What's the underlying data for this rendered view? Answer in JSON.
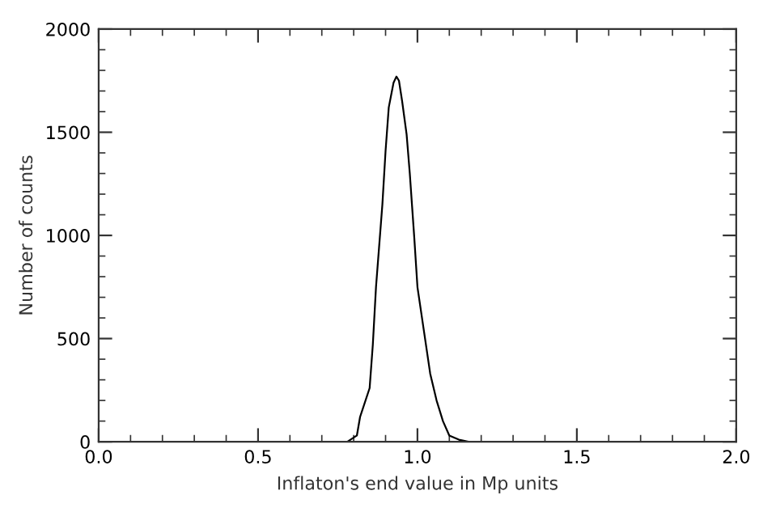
{
  "chart_data": {
    "type": "line",
    "xlabel": "Inflaton's end value in Mp units",
    "ylabel": "Number of counts",
    "xlim": [
      0.0,
      2.0
    ],
    "ylim": [
      0,
      2000
    ],
    "xticks": [
      {
        "value": 0.0,
        "label": "0.0"
      },
      {
        "value": 0.5,
        "label": "0.5"
      },
      {
        "value": 1.0,
        "label": "1.0"
      },
      {
        "value": 1.5,
        "label": "1.5"
      },
      {
        "value": 2.0,
        "label": "2.0"
      }
    ],
    "yticks": [
      0,
      500,
      1000,
      1500,
      2000
    ],
    "grid": false,
    "marker": "none",
    "line_style": "solid",
    "series": [
      {
        "color": "#000000",
        "x": [
          0.78,
          0.81,
          0.82,
          0.85,
          0.86,
          0.87,
          0.89,
          0.9,
          0.91,
          0.925,
          0.934,
          0.942,
          0.952,
          0.966,
          0.976,
          0.99,
          1.0,
          1.02,
          1.04,
          1.06,
          1.08,
          1.1,
          1.13,
          1.16,
          1.2
        ],
        "values": [
          0,
          30,
          120,
          260,
          470,
          750,
          1150,
          1410,
          1620,
          1740,
          1770,
          1750,
          1650,
          1490,
          1300,
          990,
          750,
          540,
          330,
          200,
          100,
          30,
          10,
          0,
          0
        ]
      }
    ]
  }
}
